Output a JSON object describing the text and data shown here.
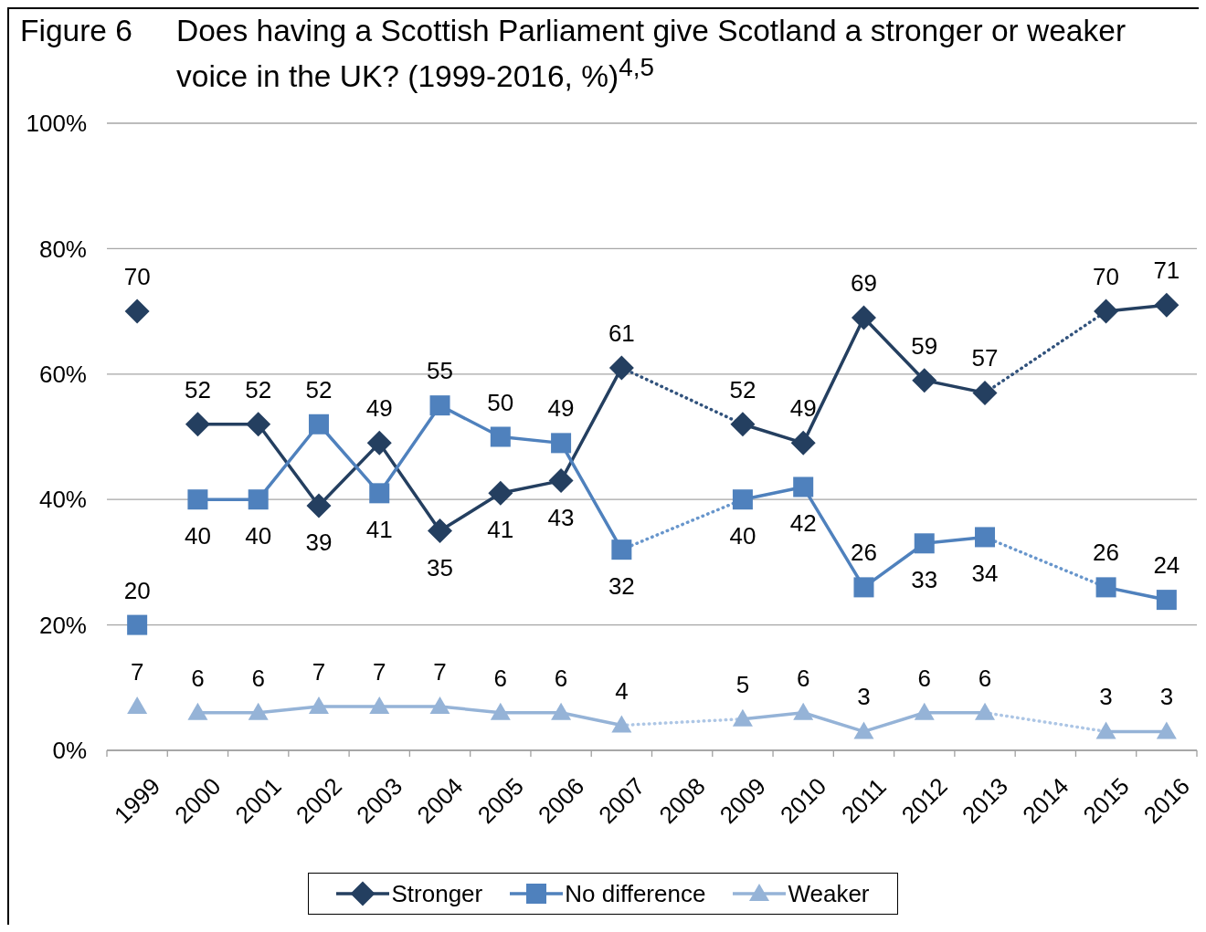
{
  "chart_data": {
    "type": "line",
    "title": "Does having a Scottish Parliament give Scotland a stronger or weaker voice in the UK? (1999-2016, %)$^{4,5}$",
    "annotations": [
      "Figure 6"
    ],
    "x": [
      2000,
      2001,
      2002,
      2003,
      2004,
      2005,
      2006,
      2007,
      2008,
      2009,
      2010,
      2011,
      2012,
      2013,
      2014,
      2015,
      2016
    ],
    "series": [
      {
        "name": "Stronger",
        "color": "#243f60",
        "marker": "diamond",
        "values": [
          52,
          52,
          39,
          49,
          35,
          41,
          43,
          61,
          null,
          52,
          49,
          69,
          59,
          57,
          null,
          70,
          71
        ],
        "value_labels": [
          "52",
          "52",
          "39",
          "49",
          "35",
          "41",
          "43",
          "61",
          null,
          "52",
          "49",
          "69",
          "59",
          "57",
          null,
          "70",
          "71"
        ]
      },
      {
        "name": "No difference",
        "color": "#4f81bd",
        "marker": "square",
        "values": [
          40,
          40,
          52,
          41,
          55,
          50,
          49,
          32,
          null,
          40,
          42,
          26,
          33,
          34,
          null,
          26,
          24
        ],
        "value_labels": [
          "40",
          "40",
          "52",
          "41",
          "55",
          "50",
          "49",
          "32",
          null,
          "40",
          "42",
          "26",
          "33",
          "34",
          null,
          "26",
          "24"
        ]
      },
      {
        "name": "Weaker",
        "color": "#95b3d7",
        "marker": "triangle",
        "values": [
          6,
          6,
          7,
          7,
          7,
          6,
          6,
          4,
          null,
          5,
          6,
          3,
          6,
          6,
          null,
          3,
          3
        ],
        "value_labels": [
          "6",
          "6",
          "7",
          "7",
          "7",
          "6",
          "6",
          "4",
          null,
          "5",
          "6",
          "3",
          "6",
          "6",
          null,
          "3",
          "3"
        ]
      },
      {
        "color": "#31527c",
        "marker": "none",
        "line_style": "dotted",
        "x": [
          2007,
          2009,
          2011,
          2013,
          2015
        ],
        "values": [
          61,
          52,
          null,
          57,
          70
        ]
      },
      {
        "color": "#6896cc",
        "marker": "none",
        "line_style": "dotted",
        "x": [
          2007,
          2009,
          2011,
          2013,
          2015
        ],
        "values": [
          32,
          40,
          null,
          34,
          26
        ]
      },
      {
        "color": "#adc6e5",
        "marker": "none",
        "line_style": "dotted",
        "x": [
          2007,
          2009,
          2011,
          2013,
          2015
        ],
        "values": [
          4,
          5,
          null,
          6,
          3
        ]
      },
      {
        "type": "scatter",
        "color": "#243f60",
        "marker": "diamond",
        "x": [
          1999
        ],
        "values": [
          70
        ],
        "value_labels": [
          "70"
        ]
      },
      {
        "type": "scatter",
        "color": "#4f81bd",
        "marker": "square",
        "x": [
          1999
        ],
        "values": [
          20
        ],
        "value_labels": [
          "20"
        ]
      },
      {
        "type": "scatter",
        "color": "#95b3d7",
        "marker": "triangle",
        "x": [
          1999
        ],
        "values": [
          7
        ],
        "value_labels": [
          "7"
        ]
      }
    ],
    "xlim": [
      1998.5,
      2016.5
    ],
    "xticks": [
      {
        "value": 1998.5,
        "label": null
      },
      1999,
      {
        "value": 1999.5,
        "label": null
      },
      2000,
      {
        "value": 2000.5,
        "label": null
      },
      2001,
      {
        "value": 2001.5,
        "label": null
      },
      2002,
      {
        "value": 2002.5,
        "label": null
      },
      2003,
      {
        "value": 2003.5,
        "label": null
      },
      2004,
      {
        "value": 2004.5,
        "label": null
      },
      2005,
      {
        "value": 2005.5,
        "label": null
      },
      2006,
      {
        "value": 2006.5,
        "label": null
      },
      2007,
      {
        "value": 2007.5,
        "label": null
      },
      2008,
      {
        "value": 2008.5,
        "label": null
      },
      2009,
      {
        "value": 2009.5,
        "label": null
      },
      2010,
      {
        "value": 2010.5,
        "label": null
      },
      2011,
      {
        "value": 2011.5,
        "label": null
      },
      2012,
      {
        "value": 2012.5,
        "label": null
      },
      2013,
      {
        "value": 2013.5,
        "label": null
      },
      2014,
      {
        "value": 2014.5,
        "label": null
      },
      2015,
      {
        "value": 2015.5,
        "label": null
      },
      2016,
      {
        "value": 2016.5,
        "label": null
      }
    ],
    "ylim": [
      0,
      100
    ],
    "yticks": [
      {
        "value": 0,
        "label": "0%"
      },
      {
        "value": 20,
        "label": "20%"
      },
      {
        "value": 40,
        "label": "40%"
      },
      {
        "value": 60,
        "label": "60%"
      },
      {
        "value": 80,
        "label": "80%"
      },
      {
        "value": 100,
        "label": "100%"
      }
    ],
    "grid": "y",
    "legend": "bottom"
  }
}
